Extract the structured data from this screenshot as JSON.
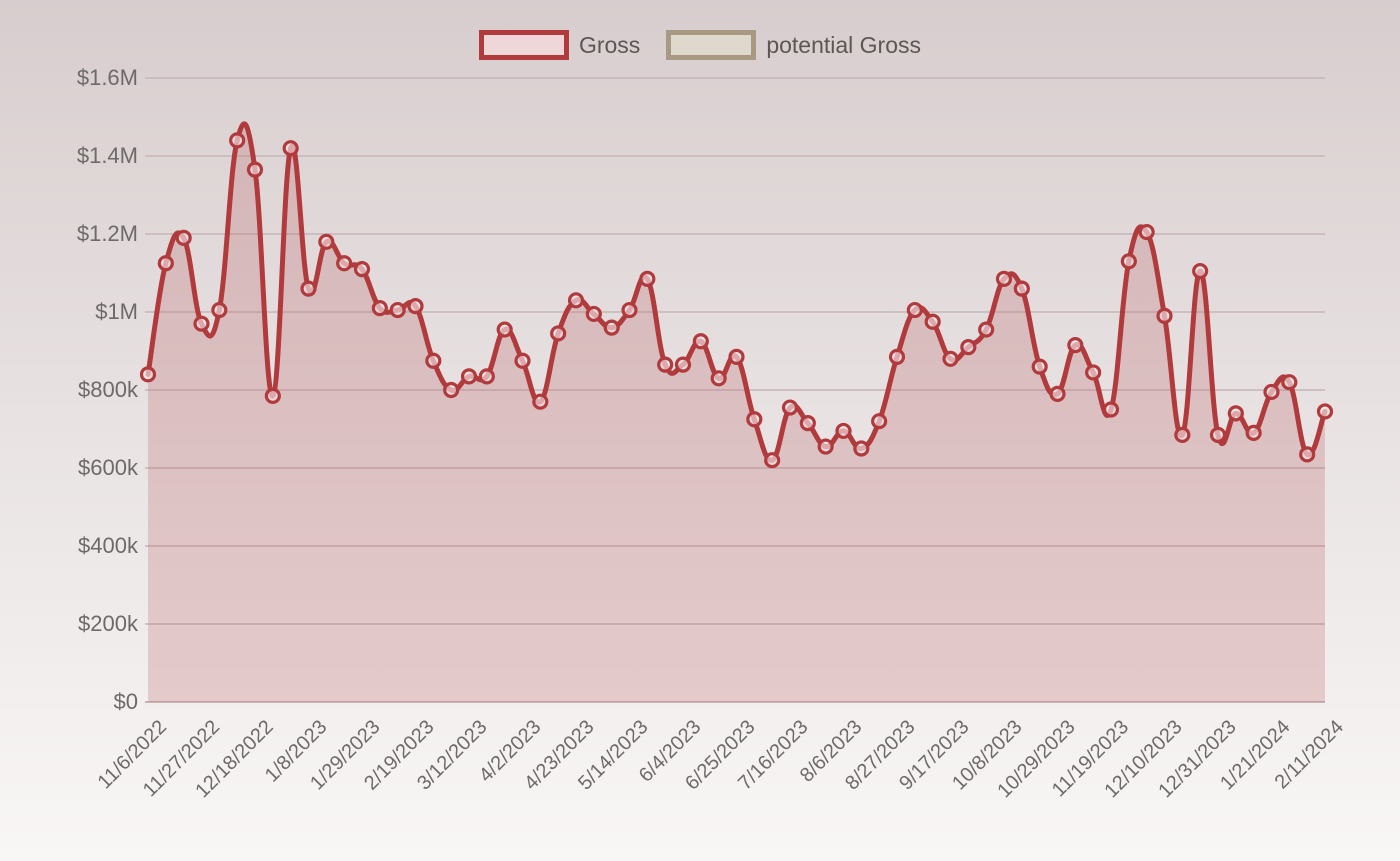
{
  "legend": {
    "items": [
      {
        "label": "Gross",
        "border_color": "#b13a3c",
        "fill_color": "#eed6d9"
      },
      {
        "label": "potential Gross",
        "border_color": "#a89a82",
        "fill_color": "#ded9cc"
      }
    ]
  },
  "chart_data": {
    "type": "line",
    "title": "",
    "xlabel": "",
    "ylabel": "",
    "legend_position": "top",
    "grid": true,
    "ylim_usd": [
      0,
      1600000
    ],
    "y_tick_labels": [
      "$1.6M",
      "$1.4M",
      "$1.2M",
      "$1M",
      "$800k",
      "$600k",
      "$400k",
      "$200k",
      "$0"
    ],
    "x_tick_labels": [
      "11/6/2022",
      "11/27/2022",
      "12/18/2022",
      "1/8/2023",
      "1/29/2023",
      "2/19/2023",
      "3/12/2023",
      "4/2/2023",
      "4/23/2023",
      "5/14/2023",
      "6/4/2023",
      "6/25/2023",
      "7/16/2023",
      "8/6/2023",
      "8/27/2023",
      "9/17/2023",
      "10/8/2023",
      "10/29/2023",
      "11/19/2023",
      "12/10/2023",
      "12/31/2023",
      "1/21/2024",
      "2/11/2024"
    ],
    "points_per_tick_label": 3,
    "n_points": 67,
    "x_start_date": "11/6/2022",
    "x_end_date": "2/11/2024",
    "x_interval": "weekly",
    "series": [
      {
        "name": "Gross",
        "unit": "USD thousands",
        "values_k": [
          840,
          1125,
          1190,
          970,
          1005,
          1440,
          1365,
          785,
          1420,
          1060,
          1180,
          1125,
          1110,
          1010,
          1005,
          1015,
          875,
          800,
          835,
          835,
          955,
          875,
          770,
          945,
          1030,
          995,
          960,
          1005,
          1085,
          865,
          865,
          925,
          830,
          885,
          725,
          620,
          755,
          715,
          655,
          695,
          650,
          720,
          885,
          1005,
          975,
          880,
          910,
          955,
          1085,
          1060,
          860,
          790,
          915,
          845,
          750,
          1130,
          1205,
          990,
          685,
          1105,
          685,
          740,
          690,
          795,
          820,
          635,
          745
        ]
      },
      {
        "name": "potential Gross",
        "unit": "USD thousands",
        "values_k": []
      }
    ],
    "colors": {
      "line": "#b13a3c",
      "marker_stroke": "#b13a3c",
      "marker_fill": "rgba(243,228,230,0.65)",
      "area_fill": "rgba(185,95,100,0.26)",
      "gridline": "#c6b6b8",
      "axis_text": "#6e6a6a"
    }
  }
}
